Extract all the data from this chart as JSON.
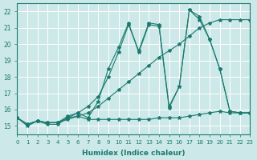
{
  "xlabel": "Humidex (Indice chaleur)",
  "xlim": [
    0,
    23
  ],
  "ylim": [
    14.5,
    22.5
  ],
  "yticks": [
    15,
    16,
    17,
    18,
    19,
    20,
    21,
    22
  ],
  "xticks": [
    0,
    1,
    2,
    3,
    4,
    5,
    6,
    7,
    8,
    9,
    10,
    11,
    12,
    13,
    14,
    15,
    16,
    17,
    18,
    19,
    20,
    21,
    22,
    23
  ],
  "background_color": "#cce8e8",
  "grid_color": "#ffffff",
  "line_color": "#1a7a6e",
  "s1_x": [
    0,
    1,
    2,
    3,
    4,
    5,
    6,
    7,
    8,
    9,
    10,
    11,
    12,
    13,
    14,
    15,
    16,
    17,
    18,
    19,
    20,
    21,
    22,
    23
  ],
  "s1_y": [
    15.5,
    15.1,
    15.3,
    15.2,
    15.2,
    15.4,
    15.6,
    15.8,
    16.2,
    16.7,
    17.2,
    17.7,
    18.2,
    18.7,
    19.2,
    19.6,
    20.0,
    20.5,
    21.0,
    21.3,
    21.5,
    21.5,
    21.5,
    21.5
  ],
  "s2_x": [
    0,
    1,
    2,
    3,
    4,
    5,
    6,
    7,
    8,
    9,
    10,
    11,
    12,
    13,
    14,
    15,
    16,
    17,
    18,
    19,
    20,
    21,
    22,
    23
  ],
  "s2_y": [
    15.5,
    15.1,
    15.3,
    15.2,
    15.2,
    15.5,
    15.8,
    16.2,
    16.8,
    18.0,
    19.5,
    21.2,
    19.6,
    21.3,
    21.2,
    16.2,
    17.4,
    22.1,
    21.7,
    20.3,
    18.5,
    15.9,
    15.8,
    15.8
  ],
  "s3_x": [
    0,
    1,
    2,
    3,
    4,
    5,
    6,
    7,
    8,
    9,
    10,
    11,
    12,
    13,
    14,
    15,
    16,
    17,
    18,
    19,
    20,
    21,
    22,
    23
  ],
  "s3_y": [
    15.5,
    15.1,
    15.3,
    15.2,
    15.2,
    15.6,
    15.8,
    15.5,
    16.5,
    18.5,
    19.8,
    21.3,
    19.5,
    21.2,
    21.1,
    16.1,
    17.4,
    22.1,
    21.5,
    20.3,
    18.5,
    15.9,
    15.8,
    15.8
  ],
  "s4_x": [
    0,
    1,
    2,
    3,
    4,
    5,
    6,
    7,
    8,
    9,
    10,
    11,
    12,
    13,
    14,
    15,
    16,
    17,
    18,
    19,
    20,
    21,
    22,
    23
  ],
  "s4_y": [
    15.5,
    15.0,
    15.3,
    15.1,
    15.1,
    15.5,
    15.6,
    15.4,
    15.4,
    15.4,
    15.4,
    15.4,
    15.4,
    15.4,
    15.5,
    15.5,
    15.5,
    15.6,
    15.7,
    15.8,
    15.9,
    15.8,
    15.8,
    15.8
  ]
}
